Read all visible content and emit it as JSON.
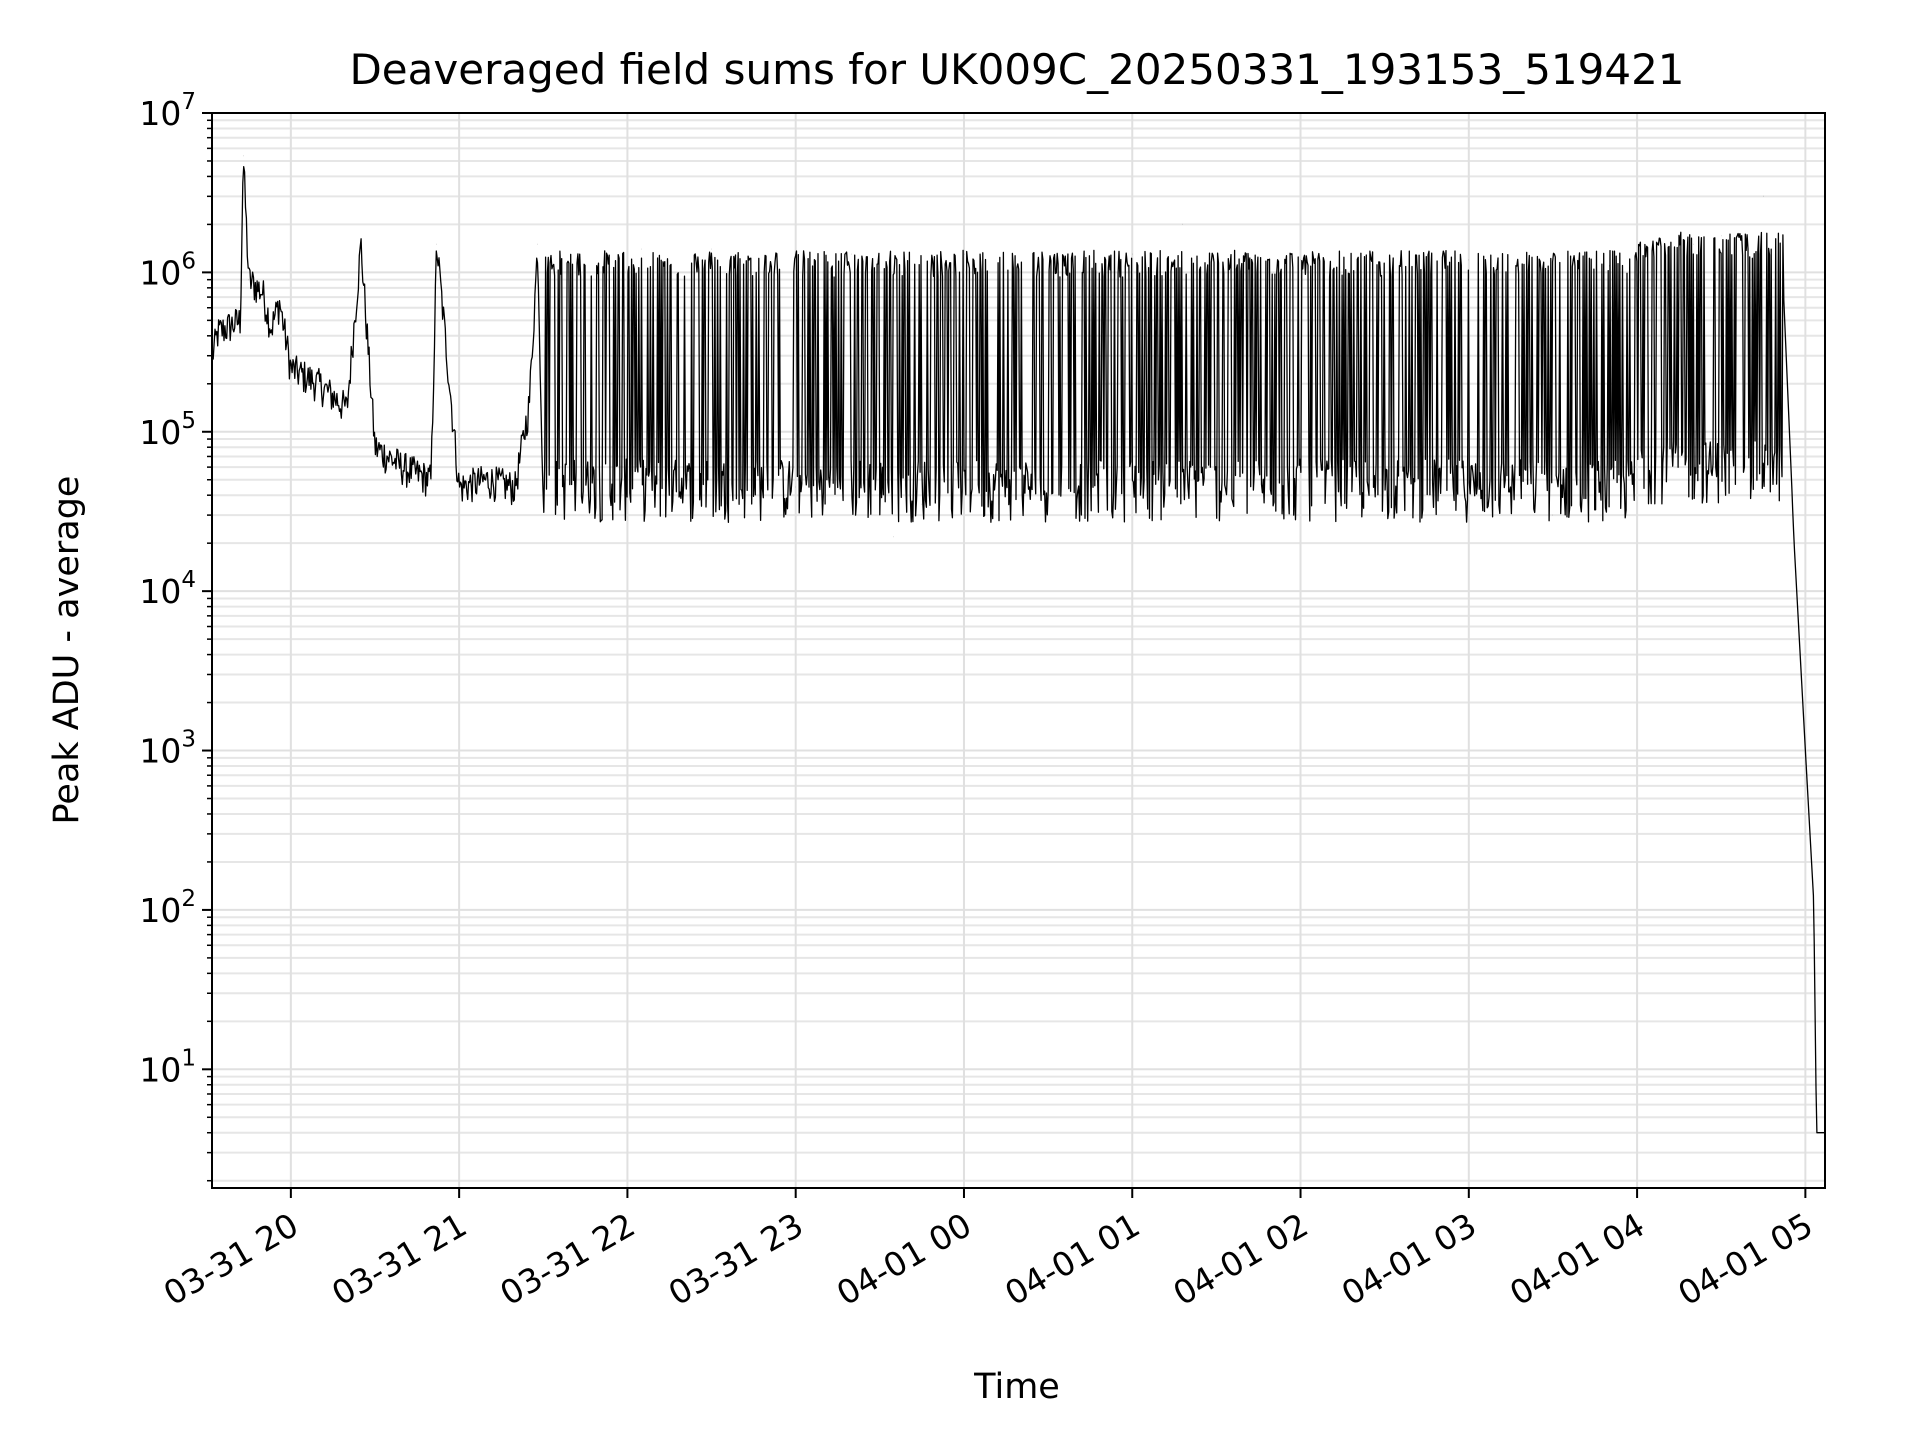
{
  "chart_data": {
    "type": "line",
    "title": "Deaveraged field sums for UK009C_20250331_193153_519421",
    "xlabel": "Time",
    "ylabel": "Peak ADU - average",
    "yscale": "log",
    "ylim": [
      1.8,
      10000000
    ],
    "xlim": [
      "2025-03-31T19:31:53",
      "2025-04-01T05:07:00"
    ],
    "grid": true,
    "legend": "none",
    "line_color": "#000000",
    "x_ticks": [
      {
        "at": "2025-03-31T20:00",
        "label": "03-31 20"
      },
      {
        "at": "2025-03-31T21:00",
        "label": "03-31 21"
      },
      {
        "at": "2025-03-31T22:00",
        "label": "03-31 22"
      },
      {
        "at": "2025-03-31T23:00",
        "label": "03-31 23"
      },
      {
        "at": "2025-04-01T00:00",
        "label": "04-01 00"
      },
      {
        "at": "2025-04-01T01:00",
        "label": "04-01 01"
      },
      {
        "at": "2025-04-01T02:00",
        "label": "04-01 02"
      },
      {
        "at": "2025-04-01T03:00",
        "label": "04-01 03"
      },
      {
        "at": "2025-04-01T04:00",
        "label": "04-01 04"
      },
      {
        "at": "2025-04-01T05:00",
        "label": "04-01 05"
      }
    ],
    "y_ticks": [
      {
        "value": 10,
        "base": "10",
        "exp": "1"
      },
      {
        "value": 100,
        "base": "10",
        "exp": "2"
      },
      {
        "value": 1000,
        "base": "10",
        "exp": "3"
      },
      {
        "value": 10000,
        "base": "10",
        "exp": "4"
      },
      {
        "value": 100000,
        "base": "10",
        "exp": "5"
      },
      {
        "value": 1000000,
        "base": "10",
        "exp": "6"
      },
      {
        "value": 10000000,
        "base": "10",
        "exp": "7"
      }
    ],
    "series": [
      {
        "points": [
          [
            "2025-03-31T19:32",
            300000
          ],
          [
            "2025-03-31T19:34",
            420000
          ],
          [
            "2025-03-31T19:38",
            460000
          ],
          [
            "2025-03-31T19:42",
            500000
          ],
          [
            "2025-03-31T19:43",
            5400000
          ],
          [
            "2025-03-31T19:45",
            900000
          ],
          [
            "2025-03-31T19:50",
            750000
          ],
          [
            "2025-03-31T19:53",
            450000
          ],
          [
            "2025-03-31T19:56",
            650000
          ],
          [
            "2025-03-31T20:00",
            250000
          ],
          [
            "2025-03-31T20:10",
            200000
          ],
          [
            "2025-03-31T20:20",
            140000
          ],
          [
            "2025-03-31T20:25",
            1500000
          ],
          [
            "2025-03-31T20:30",
            80000
          ],
          [
            "2025-03-31T20:40",
            60000
          ],
          [
            "2025-03-31T20:50",
            50000
          ],
          [
            "2025-03-31T20:52",
            1500000
          ],
          [
            "2025-03-31T21:00",
            45000
          ],
          [
            "2025-03-31T21:10",
            50000
          ],
          [
            "2025-03-31T21:20",
            45000
          ],
          [
            "2025-03-31T21:25",
            150000
          ],
          [
            "2025-03-31T21:28",
            1500000
          ],
          [
            "2025-03-31T21:30",
            40000
          ],
          [
            "2025-03-31T21:45",
            60000
          ],
          [
            "2025-03-31T22:00",
            50000
          ],
          [
            "2025-03-31T22:05",
            1400000
          ],
          [
            "2025-03-31T22:20",
            45000
          ],
          [
            "2025-03-31T22:30",
            1400000
          ],
          [
            "2025-03-31T22:45",
            40000
          ],
          [
            "2025-03-31T23:00",
            45000
          ],
          [
            "2025-03-31T23:20",
            1300000
          ],
          [
            "2025-03-31T23:35",
            22000
          ],
          [
            "2025-03-31T23:45",
            35000
          ],
          [
            "2025-04-01T00:00",
            1300000
          ],
          [
            "2025-04-01T00:30",
            35000
          ],
          [
            "2025-04-01T01:00",
            1300000
          ],
          [
            "2025-04-01T01:18",
            2000000
          ],
          [
            "2025-04-01T01:30",
            35000
          ],
          [
            "2025-04-01T02:00",
            1200000
          ],
          [
            "2025-04-01T02:30",
            30000
          ],
          [
            "2025-04-01T03:00",
            1200000
          ],
          [
            "2025-04-01T03:30",
            30000
          ],
          [
            "2025-04-01T03:50",
            1100000
          ],
          [
            "2025-04-01T04:00",
            200000
          ],
          [
            "2025-04-01T04:20",
            1500000
          ],
          [
            "2025-04-01T04:30",
            1700000
          ],
          [
            "2025-04-01T04:45",
            3000000
          ],
          [
            "2025-04-01T04:52",
            900000
          ],
          [
            "2025-04-01T04:56",
            20000
          ],
          [
            "2025-04-01T05:00",
            1000
          ],
          [
            "2025-04-01T05:03",
            110
          ],
          [
            "2025-04-01T05:04",
            4
          ],
          [
            "2025-04-01T05:07",
            4
          ]
        ]
      }
    ]
  }
}
